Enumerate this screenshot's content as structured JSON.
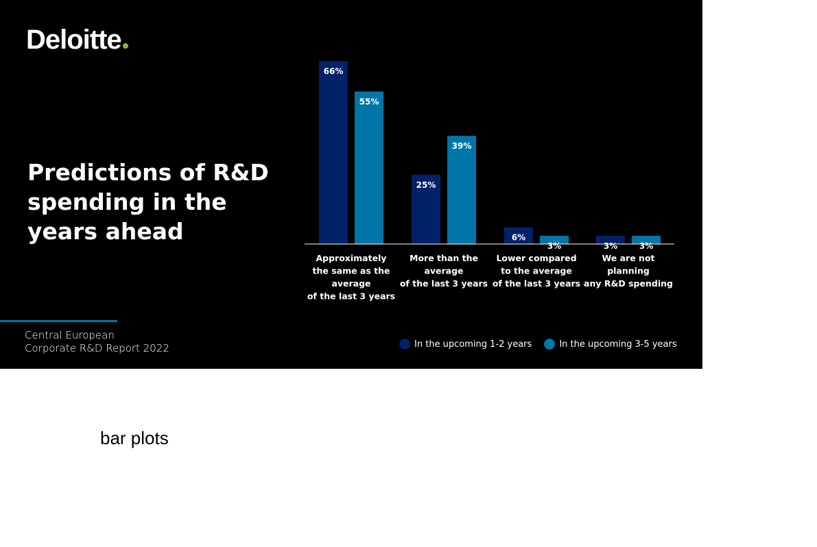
{
  "brand": {
    "name": "Deloitte",
    "dot_color": "#86BC25"
  },
  "slide": {
    "title_lines": [
      "Predictions of R&D",
      "spending in the",
      "years ahead"
    ],
    "source_lines": [
      "Central European",
      "Corporate R&D Report 2022"
    ],
    "accent_color": "#0076A8",
    "background": "#000000"
  },
  "caption": "bar plots",
  "chart_data": {
    "type": "bar",
    "title": "Predictions of R&D spending in the years ahead",
    "categories": [
      [
        "Approximately",
        "the same as the",
        "average",
        "of the last 3 years"
      ],
      [
        "More than the",
        "average",
        "of the last 3 years"
      ],
      [
        "Lower compared",
        "to the average",
        "of the last 3 years"
      ],
      [
        "We are not",
        "planning",
        "any R&D spending"
      ]
    ],
    "series": [
      {
        "name": "In the upcoming 1-2 years",
        "color": "#012169",
        "values": [
          66,
          25,
          6,
          3
        ],
        "labels": [
          "66%",
          "25%",
          "6%",
          "3%"
        ]
      },
      {
        "name": "In the upcoming 3-5 years",
        "color": "#0076A8",
        "values": [
          55,
          39,
          3,
          3
        ],
        "labels": [
          "55%",
          "39%",
          "3%",
          "3%"
        ]
      }
    ],
    "ylim": [
      0,
      66
    ],
    "unit": "%",
    "grid": false,
    "legend_position": "bottom-right"
  }
}
